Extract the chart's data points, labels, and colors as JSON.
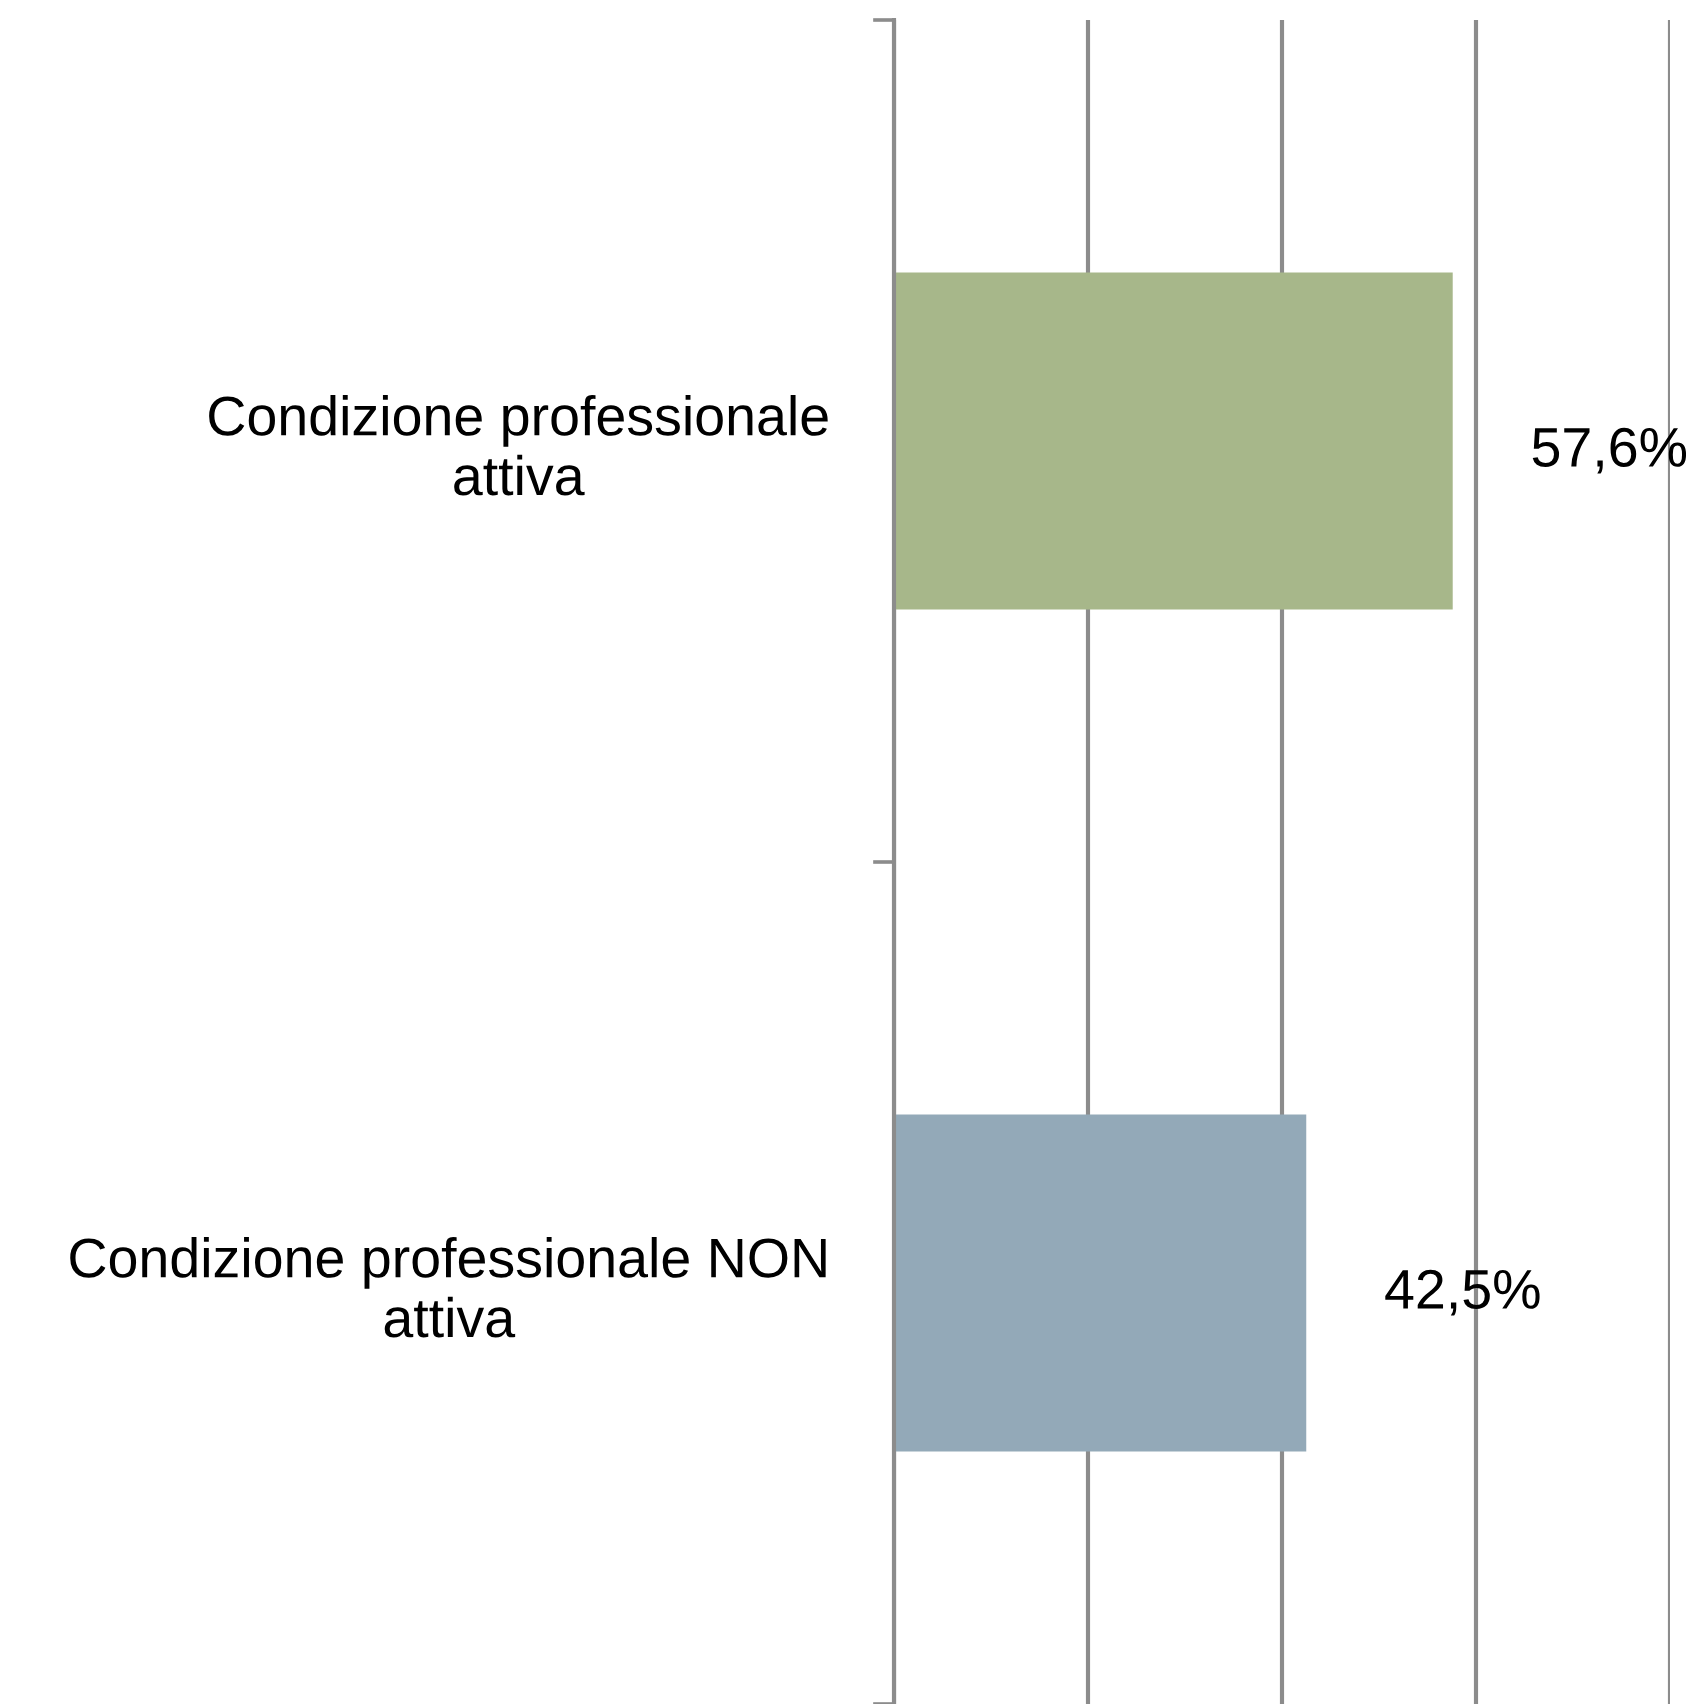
{
  "chart_data": {
    "type": "bar",
    "orientation": "horizontal",
    "categories": [
      "Condizione professionale\nattiva",
      "Condizione professionale NON\nattiva"
    ],
    "values": [
      57.6,
      42.5
    ],
    "colors": [
      "#a7b78a",
      "#93a9b8"
    ],
    "value_labels": [
      "57,6%",
      "42,5%"
    ],
    "xlim": [
      0,
      80
    ],
    "xticks": [
      {
        "value": 0,
        "label": null
      },
      {
        "value": 20,
        "label": null
      },
      {
        "value": 40,
        "label": null
      },
      {
        "value": 60,
        "label": null
      },
      {
        "value": 80,
        "label": null
      }
    ],
    "grid": "x",
    "tick_labels": "y"
  }
}
